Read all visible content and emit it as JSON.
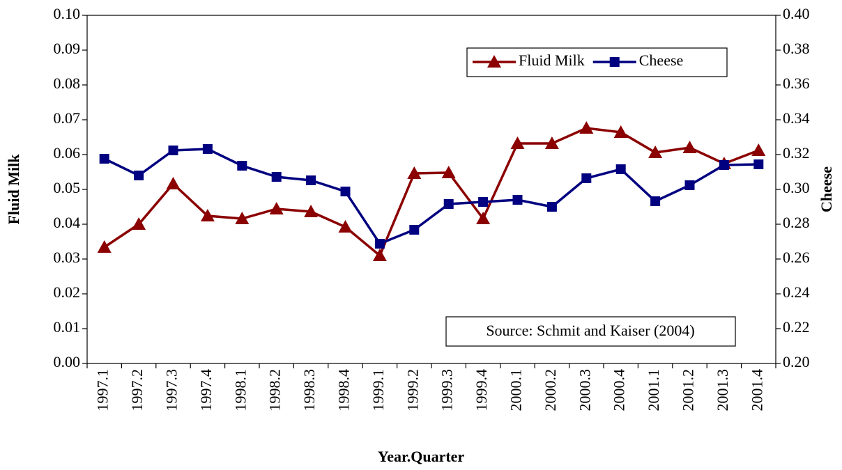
{
  "chart_data": {
    "type": "line",
    "categories": [
      "1997.1",
      "1997.2",
      "1997.3",
      "1997.4",
      "1998.1",
      "1998.2",
      "1998.3",
      "1998.4",
      "1999.1",
      "1999.2",
      "1999.3",
      "1999.4",
      "2000.1",
      "2000.2",
      "2000.3",
      "2000.4",
      "2001.1",
      "2001.2",
      "2001.3",
      "2001.4"
    ],
    "series": [
      {
        "name": "Fluid Milk",
        "color": "#8b0000",
        "marker": "triangle",
        "values": [
          0.0334,
          0.04,
          0.0516,
          0.0424,
          0.0416,
          0.0444,
          0.0436,
          0.0392,
          0.031,
          0.0546,
          0.0548,
          0.0416,
          0.0632,
          0.0632,
          0.0676,
          0.0664,
          0.0606,
          0.062,
          0.0574,
          0.0612
        ]
      },
      {
        "name": "Cheese",
        "color": "#000080",
        "marker": "square",
        "axis": "y2",
        "values": [
          0.3176,
          0.308,
          0.3224,
          0.3232,
          0.3136,
          0.3072,
          0.3052,
          0.2988,
          0.2688,
          0.2768,
          0.2916,
          0.2928,
          0.294,
          0.29,
          0.3064,
          0.3116,
          0.2932,
          0.3024,
          0.314,
          0.3144
        ]
      }
    ],
    "ylim": [
      0,
      0.1
    ],
    "yticks": [
      {
        "value": 0,
        "label": "0.00"
      },
      0.01,
      0.02,
      0.03,
      0.04,
      0.05,
      0.06,
      0.07,
      0.08,
      0.09,
      {
        "value": 0.1,
        "label": "0.10"
      }
    ],
    "y2lim": [
      0.2,
      0.4
    ],
    "y2ticks": [
      {
        "value": 0.2,
        "label": "0.20"
      },
      0.22,
      0.24,
      0.26,
      0.28,
      {
        "value": 0.3,
        "label": "0.30"
      },
      0.32,
      0.34,
      0.36,
      0.38,
      {
        "value": 0.4,
        "label": "0.40"
      }
    ],
    "xlabel": "Year.Quarter",
    "ylabel": "Fluid Milk",
    "y2label": "Cheese",
    "annotation": "Source: Schmit and Kaiser (2004)",
    "legend": "upper right",
    "grid": false
  }
}
